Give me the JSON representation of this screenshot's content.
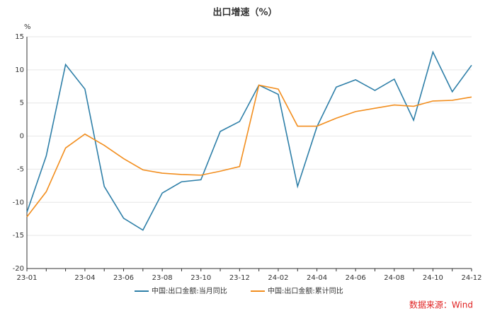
{
  "chart_data": {
    "type": "line",
    "title": "出口增速（%）",
    "y_label": "%",
    "source": "数据来源：Wind",
    "categories": [
      "23-01",
      null,
      null,
      "23-04",
      null,
      "23-06",
      null,
      "23-08",
      null,
      "23-10",
      null,
      "23-12",
      null,
      "24-02",
      null,
      "24-04",
      null,
      "24-06",
      null,
      "24-08",
      null,
      "24-10",
      null,
      "24-12"
    ],
    "series": [
      {
        "name": "中国:出口金额:当月同比",
        "color": "#2e7fa8",
        "values": [
          -11.5,
          -3.0,
          10.8,
          7.1,
          -7.6,
          -12.4,
          -14.2,
          -8.6,
          -6.9,
          -6.6,
          0.7,
          2.2,
          7.7,
          6.3,
          -7.6,
          1.4,
          7.4,
          8.5,
          6.9,
          8.6,
          2.4,
          12.7,
          6.7,
          10.7
        ]
      },
      {
        "name": "中国:出口金额:累计同比",
        "color": "#f28e1e",
        "values": [
          -12.2,
          -8.4,
          -1.8,
          0.3,
          -1.4,
          -3.4,
          -5.1,
          -5.6,
          -5.8,
          -5.9,
          -5.3,
          -4.6,
          7.7,
          7.1,
          1.5,
          1.5,
          2.7,
          3.7,
          4.2,
          4.7,
          4.5,
          5.3,
          5.4,
          5.9
        ]
      }
    ],
    "ylim": [
      -20,
      15
    ],
    "yticks": [
      15,
      10,
      5,
      0,
      -5,
      -10,
      -15,
      -20
    ],
    "grid": true,
    "legend": "bottom"
  }
}
